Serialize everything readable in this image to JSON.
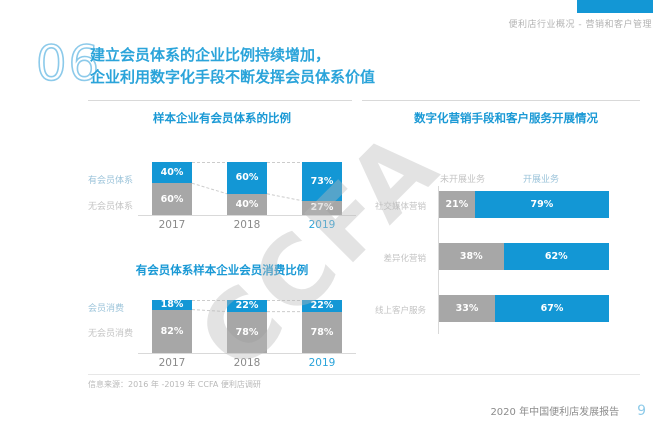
{
  "header": {
    "breadcrumb": "便利店行业概况 - 营销和客户管理",
    "section_number": "06",
    "title_line1": "建立会员体系的企业比例持续增加，",
    "title_line2": "企业利用数字化手段不断发挥会员体系价值"
  },
  "watermark": "CCFA",
  "colors": {
    "blue": "#1397d5",
    "gray": "#a7a7a7",
    "accent": "#2ba4da",
    "blue_label_text": "#9cc4da",
    "gray_label_text": "#c4c4c4"
  },
  "chart_data": [
    {
      "type": "bar",
      "stacked": true,
      "orientation": "vertical",
      "title": "样本企业有会员体系的比例",
      "categories": [
        "2017",
        "2018",
        "2019"
      ],
      "series": [
        {
          "name": "有会员体系",
          "color": "#1397d5",
          "values": [
            40,
            60,
            73
          ]
        },
        {
          "name": "无会员体系",
          "color": "#a7a7a7",
          "values": [
            60,
            40,
            27
          ]
        }
      ],
      "unit": "%",
      "ylim": [
        0,
        100
      ],
      "legend_position": "left",
      "grid": false
    },
    {
      "type": "bar",
      "stacked": true,
      "orientation": "vertical",
      "title": "有会员体系样本企业会员消费比例",
      "categories": [
        "2017",
        "2018",
        "2019"
      ],
      "series": [
        {
          "name": "会员消费",
          "color": "#1397d5",
          "values": [
            18,
            22,
            22
          ]
        },
        {
          "name": "无会员消费",
          "color": "#a7a7a7",
          "values": [
            82,
            78,
            78
          ]
        }
      ],
      "unit": "%",
      "ylim": [
        0,
        100
      ],
      "legend_position": "left",
      "grid": false
    },
    {
      "type": "bar",
      "stacked": true,
      "orientation": "horizontal",
      "title": "数字化营销手段和客户服务开展情况",
      "categories": [
        "社交媒体营销",
        "差异化营销",
        "线上客户服务"
      ],
      "series": [
        {
          "name": "未开展业务",
          "color": "#a7a7a7",
          "values": [
            21,
            38,
            33
          ]
        },
        {
          "name": "开展业务",
          "color": "#1397d5",
          "values": [
            79,
            62,
            67
          ]
        }
      ],
      "unit": "%",
      "xlim": [
        0,
        100
      ],
      "legend_position": "top",
      "grid": false
    }
  ],
  "footer": {
    "source": "信息来源：2016 年 -2019 年 CCFA 便利店调研",
    "report_title": "2020 年中国便利店发展报告",
    "page_number": "9"
  }
}
